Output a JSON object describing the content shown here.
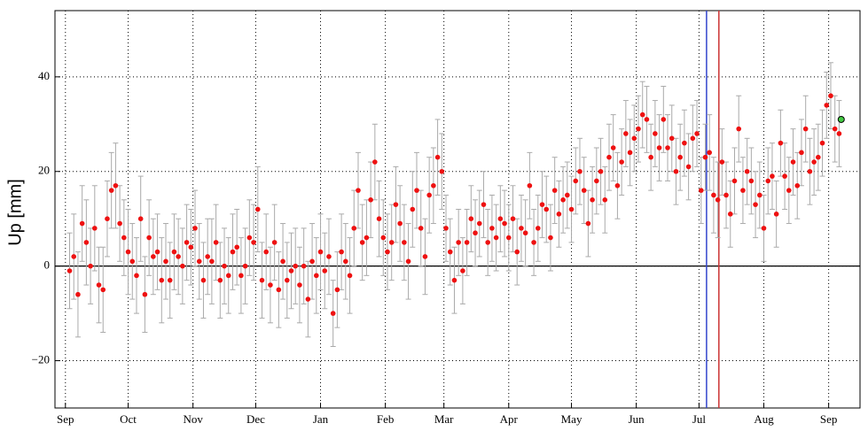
{
  "chart_data": {
    "type": "errorbar_scatter",
    "ylabel": "Up [mm]",
    "xlim": [
      -5,
      380
    ],
    "ylim": [
      -30,
      54
    ],
    "xticks": [
      {
        "value": 0,
        "label": "Sep"
      },
      {
        "value": 30,
        "label": "Oct"
      },
      {
        "value": 61,
        "label": "Nov"
      },
      {
        "value": 91,
        "label": "Dec"
      },
      {
        "value": 122,
        "label": "Jan"
      },
      {
        "value": 153,
        "label": "Feb"
      },
      {
        "value": 181,
        "label": "Mar"
      },
      {
        "value": 212,
        "label": "Apr"
      },
      {
        "value": 242,
        "label": "May"
      },
      {
        "value": 273,
        "label": "Jun"
      },
      {
        "value": 303,
        "label": "Jul"
      },
      {
        "value": 334,
        "label": "Aug"
      },
      {
        "value": 365,
        "label": "Sep"
      }
    ],
    "yticks": [
      {
        "value": -20,
        "label": "−20"
      },
      0,
      20,
      40
    ],
    "grid": true,
    "hlines": [
      0
    ],
    "vlines": [
      {
        "x": 306.6,
        "color": "#3344cc"
      },
      {
        "x": 312.5,
        "color": "#cc3333"
      }
    ],
    "series": [
      {
        "color": "#ee1111",
        "error_color": "#aaaaaa",
        "x": [
          2,
          4,
          6,
          8,
          10,
          12,
          14,
          16,
          18,
          20,
          22,
          24,
          26,
          28,
          30,
          32,
          34,
          36,
          38,
          40,
          42,
          44,
          46,
          48,
          50,
          52,
          54,
          56,
          58,
          60,
          62,
          64,
          66,
          68,
          70,
          72,
          74,
          76,
          78,
          80,
          82,
          84,
          86,
          88,
          90,
          92,
          94,
          96,
          98,
          100,
          102,
          104,
          106,
          108,
          110,
          112,
          114,
          116,
          118,
          120,
          122,
          124,
          126,
          128,
          130,
          132,
          134,
          136,
          138,
          140,
          142,
          144,
          146,
          148,
          150,
          152,
          154,
          156,
          158,
          160,
          162,
          164,
          166,
          168,
          170,
          172,
          174,
          176,
          178,
          180,
          182,
          184,
          186,
          188,
          190,
          192,
          194,
          196,
          198,
          200,
          202,
          204,
          206,
          208,
          210,
          212,
          214,
          216,
          218,
          220,
          222,
          224,
          226,
          228,
          230,
          232,
          234,
          236,
          238,
          240,
          242,
          244,
          246,
          248,
          250,
          252,
          254,
          256,
          258,
          260,
          262,
          264,
          266,
          268,
          270,
          272,
          274,
          276,
          278,
          280,
          282,
          284,
          286,
          288,
          290,
          292,
          294,
          296,
          298,
          300,
          302,
          304,
          306,
          308,
          310,
          312,
          314,
          316,
          318,
          320,
          322,
          324,
          326,
          328,
          330,
          332,
          334,
          336,
          338,
          340,
          342,
          344,
          346,
          348,
          350,
          352,
          354,
          356,
          358,
          360,
          362,
          364,
          366,
          368,
          370
        ],
        "values": [
          -1,
          2,
          -6,
          9,
          5,
          0,
          8,
          -4,
          -5,
          10,
          16,
          17,
          9,
          6,
          3,
          1,
          -2,
          10,
          -6,
          6,
          2,
          3,
          -3,
          1,
          -3,
          3,
          2,
          0,
          5,
          4,
          8,
          1,
          -3,
          2,
          1,
          5,
          -3,
          0,
          -2,
          3,
          4,
          -2,
          0,
          6,
          5,
          12,
          -3,
          3,
          -4,
          5,
          -5,
          1,
          -3,
          -1,
          0,
          -4,
          0,
          -7,
          1,
          -2,
          3,
          -1,
          2,
          -10,
          -5,
          3,
          1,
          -2,
          8,
          16,
          5,
          6,
          14,
          22,
          10,
          6,
          3,
          5,
          13,
          9,
          5,
          1,
          12,
          16,
          8,
          2,
          15,
          17,
          23,
          20,
          8,
          3,
          -3,
          5,
          -1,
          5,
          10,
          7,
          9,
          13,
          5,
          8,
          6,
          10,
          9,
          6,
          10,
          3,
          8,
          7,
          17,
          5,
          8,
          13,
          12,
          6,
          16,
          11,
          14,
          15,
          12,
          18,
          20,
          16,
          9,
          14,
          18,
          20,
          14,
          23,
          25,
          17,
          22,
          28,
          24,
          27,
          29,
          32,
          31,
          23,
          28,
          25,
          31,
          25,
          27,
          20,
          23,
          26,
          21,
          27,
          28,
          16,
          23,
          24,
          15,
          14,
          22,
          15,
          11,
          18,
          29,
          16,
          20,
          18,
          13,
          15,
          8,
          18,
          19,
          11,
          26,
          19,
          16,
          22,
          17,
          24,
          29,
          20,
          22,
          23,
          26,
          34,
          36,
          29,
          28
        ],
        "errors": [
          8,
          9,
          9,
          8,
          9,
          8,
          9,
          8,
          9,
          8,
          8,
          9,
          8,
          8,
          9,
          8,
          8,
          9,
          8,
          8,
          8,
          8,
          9,
          8,
          8,
          8,
          8,
          8,
          8,
          8,
          8,
          8,
          8,
          8,
          9,
          8,
          8,
          8,
          8,
          8,
          8,
          8,
          8,
          8,
          8,
          9,
          8,
          8,
          8,
          8,
          8,
          8,
          8,
          8,
          8,
          8,
          8,
          8,
          8,
          8,
          8,
          8,
          8,
          7,
          8,
          8,
          8,
          8,
          8,
          8,
          8,
          8,
          8,
          8,
          8,
          8,
          8,
          8,
          8,
          8,
          8,
          8,
          8,
          8,
          8,
          8,
          8,
          8,
          8,
          8,
          7,
          7,
          7,
          7,
          7,
          7,
          7,
          7,
          7,
          7,
          7,
          7,
          7,
          7,
          7,
          7,
          7,
          7,
          7,
          7,
          7,
          7,
          7,
          7,
          7,
          7,
          7,
          7,
          7,
          7,
          7,
          7,
          7,
          7,
          7,
          7,
          7,
          7,
          7,
          7,
          7,
          7,
          7,
          7,
          7,
          7,
          7,
          7,
          7,
          7,
          7,
          7,
          7,
          7,
          7,
          7,
          7,
          7,
          7,
          7,
          7,
          7,
          7,
          8,
          8,
          8,
          7,
          7,
          7,
          7,
          7,
          7,
          7,
          7,
          7,
          7,
          7,
          7,
          7,
          7,
          7,
          7,
          7,
          7,
          7,
          7,
          7,
          7,
          7,
          7,
          7,
          7,
          7,
          7,
          7
        ]
      },
      {
        "color": "#44cc44",
        "x": [
          371
        ],
        "values": [
          31
        ]
      }
    ]
  }
}
